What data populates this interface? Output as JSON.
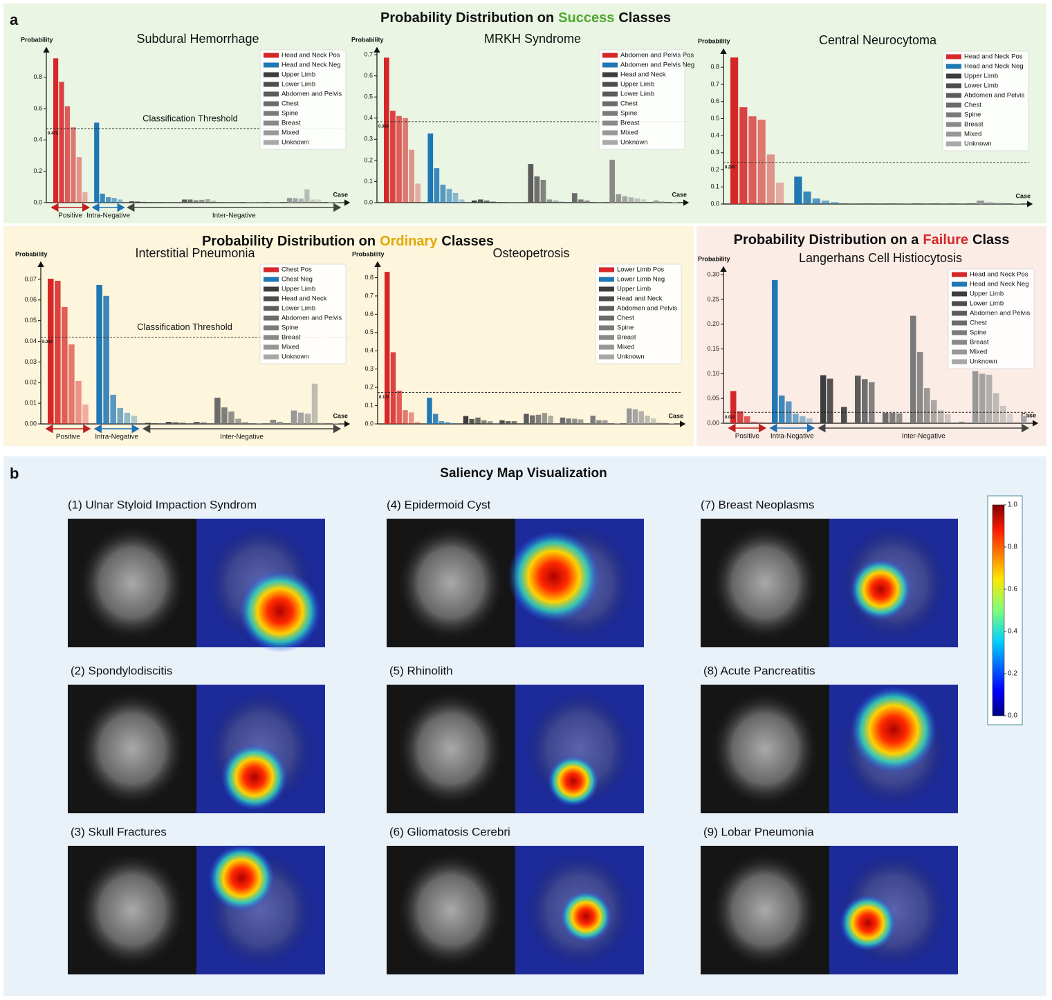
{
  "panel_a": {
    "label": "a",
    "sections": [
      {
        "prefix": "Probability Distribution on",
        "highlight": "Success",
        "suffix": "Classes",
        "color": "#4ea72e"
      },
      {
        "prefix": "Probability Distribution on",
        "highlight": "Ordinary",
        "suffix": "Classes",
        "color": "#e0a800"
      },
      {
        "prefix": "Probability Distribution on a",
        "highlight": "Failure",
        "suffix": "Class",
        "color": "#d62728"
      }
    ]
  },
  "chart_data": [
    {
      "type": "bar",
      "title": "Subdural Hemorrhage",
      "ylabel": "Probability",
      "xlabel": "Case",
      "ylim": [
        0,
        0.97
      ],
      "yticks": [
        {
          "value": 0,
          "label": "0.0"
        },
        0.2,
        0.4,
        0.6,
        0.8
      ],
      "threshold": 0.472,
      "threshold_label": "Classification Threshold",
      "groups": [
        "Positive",
        "Intra-Negative",
        "Inter-Negative"
      ],
      "legend": "upper right",
      "series": [
        {
          "name": "Head and Neck Pos",
          "color": "#d62728",
          "values": [
            0.92,
            0.77,
            0.615,
            0.48,
            0.29,
            0.066
          ]
        },
        {
          "name": "Head and Neck Neg",
          "color": "#1f77b4",
          "values": [
            0.51,
            0.057,
            0.035,
            0.03,
            0.02
          ]
        },
        {
          "name": "Upper Limb",
          "color": "#3d3d3d",
          "values": [
            0.008,
            0.007,
            0.005,
            0.004
          ]
        },
        {
          "name": "Lower Limb",
          "color": "#4d4d4d",
          "values": [
            0.004,
            0.003,
            0.003
          ]
        },
        {
          "name": "Abdomen and Pelvis",
          "color": "#5c5c5c",
          "values": [
            0.02,
            0.02,
            0.015,
            0.018,
            0.022,
            0.012
          ]
        },
        {
          "name": "Chest",
          "color": "#6b6b6b",
          "values": [
            0.004,
            0.003,
            0.003
          ]
        },
        {
          "name": "Spine",
          "color": "#7a7a7a",
          "values": [
            0.003,
            0.002,
            0.002
          ]
        },
        {
          "name": "Breast",
          "color": "#898989",
          "values": [
            0.002,
            0.002
          ]
        },
        {
          "name": "Mixed",
          "color": "#989898",
          "values": [
            0.03,
            0.028,
            0.025,
            0.085,
            0.02,
            0.02
          ]
        },
        {
          "name": "Unknown",
          "color": "#a8a8a8",
          "values": [
            0.005,
            0.004
          ]
        }
      ]
    },
    {
      "type": "bar",
      "title": "MRKH Syndrome",
      "ylabel": "Probability",
      "xlabel": "Case",
      "ylim": [
        0,
        0.72
      ],
      "yticks": [
        {
          "value": 0,
          "label": "0.0"
        },
        0.1,
        0.2,
        0.3,
        0.4,
        0.5,
        0.6,
        0.7
      ],
      "threshold": 0.383,
      "legend": "upper right",
      "series": [
        {
          "name": "Abdomen and Pelvis Pos",
          "color": "#d62728",
          "values": [
            0.686,
            0.435,
            0.41,
            0.4,
            0.25,
            0.09
          ]
        },
        {
          "name": "Abdomen and Pelvis Neg",
          "color": "#1f77b4",
          "values": [
            0.327,
            0.163,
            0.085,
            0.065,
            0.046,
            0.015
          ]
        },
        {
          "name": "Head and Neck",
          "color": "#3d3d3d",
          "values": [
            0.01,
            0.015,
            0.01,
            0.005,
            0.003
          ]
        },
        {
          "name": "Upper Limb",
          "color": "#4d4d4d",
          "values": [
            0.002,
            0.002
          ]
        },
        {
          "name": "Lower Limb",
          "color": "#5c5c5c",
          "values": [
            0.183,
            0.124,
            0.108,
            0.015,
            0.01,
            0.005
          ]
        },
        {
          "name": "Chest",
          "color": "#6b6b6b",
          "values": [
            0.045,
            0.015,
            0.01
          ]
        },
        {
          "name": "Spine",
          "color": "#7a7a7a",
          "values": [
            0.003
          ]
        },
        {
          "name": "Breast",
          "color": "#898989",
          "values": [
            0.203,
            0.04,
            0.03,
            0.025,
            0.02,
            0.015
          ]
        },
        {
          "name": "Mixed",
          "color": "#989898",
          "values": [
            0.01,
            0.005
          ]
        },
        {
          "name": "Unknown",
          "color": "#a8a8a8",
          "values": [
            0.003
          ]
        }
      ]
    },
    {
      "type": "bar",
      "title": "Central Neurocytoma",
      "ylabel": "Probability",
      "xlabel": "Case",
      "ylim": [
        0,
        0.89
      ],
      "yticks": [
        {
          "value": 0,
          "label": "0.0"
        },
        0.1,
        0.2,
        0.3,
        0.4,
        0.5,
        0.6,
        0.7,
        0.8
      ],
      "threshold": 0.243,
      "legend": "upper right",
      "series": [
        {
          "name": "Head and Neck Pos",
          "color": "#d62728",
          "values": [
            0.857,
            0.566,
            0.513,
            0.493,
            0.29,
            0.125
          ]
        },
        {
          "name": "Head and Neck Neg",
          "color": "#1f77b4",
          "values": [
            0.16,
            0.073,
            0.032,
            0.02,
            0.012
          ]
        },
        {
          "name": "Upper Limb",
          "color": "#3d3d3d",
          "values": [
            0.002,
            0.001
          ]
        },
        {
          "name": "Lower Limb",
          "color": "#4d4d4d",
          "values": [
            0.001
          ]
        },
        {
          "name": "Abdomen and Pelvis",
          "color": "#5c5c5c",
          "values": [
            0.003,
            0.002
          ]
        },
        {
          "name": "Chest",
          "color": "#6b6b6b",
          "values": [
            0.001
          ]
        },
        {
          "name": "Spine",
          "color": "#7a7a7a",
          "values": [
            0.001
          ]
        },
        {
          "name": "Breast",
          "color": "#898989",
          "values": [
            0.001
          ]
        },
        {
          "name": "Mixed",
          "color": "#989898",
          "values": [
            0.02,
            0.01,
            0.008
          ]
        },
        {
          "name": "Unknown",
          "color": "#a8a8a8",
          "values": [
            0.002
          ]
        }
      ]
    },
    {
      "type": "bar",
      "title": "Interstitial Pneumonia",
      "ylabel": "Probability",
      "xlabel": "Case",
      "ylim": [
        0,
        0.077
      ],
      "yticks": [
        {
          "value": 0,
          "label": "0.00"
        },
        0.01,
        0.02,
        0.03,
        0.04,
        0.05,
        0.06,
        0.07
      ],
      "threshold": 0.042,
      "threshold_label": "Classification Threshold",
      "groups": [
        "Positive",
        "Intra-Negative",
        "Inter-Negative"
      ],
      "legend": "upper right",
      "series": [
        {
          "name": "Chest Pos",
          "color": "#d62728",
          "values": [
            0.0703,
            0.0693,
            0.0566,
            0.0385,
            0.0208,
            0.0094
          ]
        },
        {
          "name": "Chest Neg",
          "color": "#1f77b4",
          "values": [
            0.0673,
            0.062,
            0.0141,
            0.0077,
            0.0054,
            0.004
          ]
        },
        {
          "name": "Upper Limb",
          "color": "#3d3d3d",
          "values": [
            0.0005,
            0.0003
          ]
        },
        {
          "name": "Head and Neck",
          "color": "#4d4d4d",
          "values": [
            0.001,
            0.0008,
            0.0006
          ]
        },
        {
          "name": "Lower Limb",
          "color": "#5c5c5c",
          "values": [
            0.001,
            0.0007
          ]
        },
        {
          "name": "Abdomen and Pelvis",
          "color": "#6b6b6b",
          "values": [
            0.0127,
            0.008,
            0.006,
            0.0025,
            0.001
          ]
        },
        {
          "name": "Spine",
          "color": "#7a7a7a",
          "values": [
            0.0002
          ]
        },
        {
          "name": "Breast",
          "color": "#898989",
          "values": [
            0.002,
            0.001
          ]
        },
        {
          "name": "Mixed",
          "color": "#989898",
          "values": [
            0.0065,
            0.0055,
            0.005,
            0.0195,
            0.0005
          ]
        },
        {
          "name": "Unknown",
          "color": "#a8a8a8",
          "values": [
            0.0003
          ]
        }
      ]
    },
    {
      "type": "bar",
      "title": "Osteopetrosis",
      "ylabel": "Probability",
      "xlabel": "Case",
      "ylim": [
        0,
        0.87
      ],
      "yticks": [
        {
          "value": 0,
          "label": "0.0"
        },
        0.1,
        0.2,
        0.3,
        0.4,
        0.5,
        0.6,
        0.7,
        0.8
      ],
      "threshold": 0.172,
      "legend": "upper right",
      "series": [
        {
          "name": "Lower Limb Pos",
          "color": "#d62728",
          "values": [
            0.832,
            0.392,
            0.182,
            0.075,
            0.063,
            0.012
          ]
        },
        {
          "name": "Lower Limb Neg",
          "color": "#1f77b4",
          "values": [
            0.143,
            0.055,
            0.015,
            0.01,
            0.005
          ]
        },
        {
          "name": "Upper Limb",
          "color": "#3d3d3d",
          "values": [
            0.043,
            0.027,
            0.035,
            0.02,
            0.015
          ]
        },
        {
          "name": "Head and Neck",
          "color": "#4d4d4d",
          "values": [
            0.02,
            0.015,
            0.015
          ]
        },
        {
          "name": "Abdomen and Pelvis",
          "color": "#5c5c5c",
          "values": [
            0.055,
            0.047,
            0.05,
            0.06,
            0.045
          ]
        },
        {
          "name": "Chest",
          "color": "#6b6b6b",
          "values": [
            0.035,
            0.03,
            0.028,
            0.025
          ]
        },
        {
          "name": "Spine",
          "color": "#7a7a7a",
          "values": [
            0.045,
            0.02,
            0.02
          ]
        },
        {
          "name": "Breast",
          "color": "#898989",
          "values": [
            0.002
          ]
        },
        {
          "name": "Mixed",
          "color": "#989898",
          "values": [
            0.085,
            0.08,
            0.07,
            0.045,
            0.03,
            0.01
          ]
        },
        {
          "name": "Unknown",
          "color": "#a8a8a8",
          "values": [
            0.003
          ]
        }
      ]
    },
    {
      "type": "bar",
      "title": "Langerhans Cell Histiocytosis",
      "ylabel": "Probability",
      "xlabel": "Case",
      "ylim": [
        0,
        0.31
      ],
      "yticks": [
        {
          "value": 0,
          "label": "0.00"
        },
        0.05,
        {
          "value": 0.1,
          "label": "0.10"
        },
        0.15,
        {
          "value": 0.2,
          "label": "0.20"
        },
        0.25,
        {
          "value": 0.3,
          "label": "0.30"
        }
      ],
      "threshold": 0.022,
      "groups": [
        "Positive",
        "Intra-Negative",
        "Inter-Negative"
      ],
      "legend": "upper right",
      "series": [
        {
          "name": "Head and Neck Pos",
          "color": "#d62728",
          "values": [
            0.065,
            0.024,
            0.014,
            0.003,
            0.002
          ]
        },
        {
          "name": "Head and Neck Neg",
          "color": "#1f77b4",
          "values": [
            0.289,
            0.056,
            0.044,
            0.019,
            0.014,
            0.01
          ]
        },
        {
          "name": "Upper Limb",
          "color": "#3d3d3d",
          "values": [
            0.097,
            0.09
          ]
        },
        {
          "name": "Lower Limb",
          "color": "#4d4d4d",
          "values": [
            0.033
          ]
        },
        {
          "name": "Abdomen and Pelvis",
          "color": "#5c5c5c",
          "values": [
            0.096,
            0.089,
            0.083
          ]
        },
        {
          "name": "Chest",
          "color": "#6b6b6b",
          "values": [
            0.021,
            0.021,
            0.02
          ]
        },
        {
          "name": "Spine",
          "color": "#7a7a7a",
          "values": [
            0.217,
            0.144,
            0.071,
            0.047,
            0.026,
            0.018
          ]
        },
        {
          "name": "Breast",
          "color": "#898989",
          "values": [
            0.003
          ]
        },
        {
          "name": "Mixed",
          "color": "#989898",
          "values": [
            0.105,
            0.1,
            0.098,
            0.061,
            0.035,
            0.02
          ]
        },
        {
          "name": "Unknown",
          "color": "#a8a8a8",
          "values": [
            0.015
          ]
        }
      ]
    }
  ],
  "panel_b": {
    "label": "b",
    "title": "Saliency Map Visualization",
    "items": [
      "(1) Ulnar Styloid Impaction Syndrom",
      "(2) Spondylodiscitis",
      "(3) Skull Fractures",
      "(4) Epidermoid Cyst",
      "(5) Rhinolith",
      "(6) Gliomatosis Cerebri",
      "(7) Breast Neoplasms",
      "(8) Acute Pancreatitis",
      "(9) Lobar Pneumonia"
    ],
    "colorbar": {
      "range": [
        0,
        1
      ],
      "ticks": [
        {
          "value": 0,
          "label": "0.0"
        },
        0.2,
        0.4,
        0.6,
        0.8,
        {
          "value": 1,
          "label": "1.0"
        }
      ]
    }
  }
}
